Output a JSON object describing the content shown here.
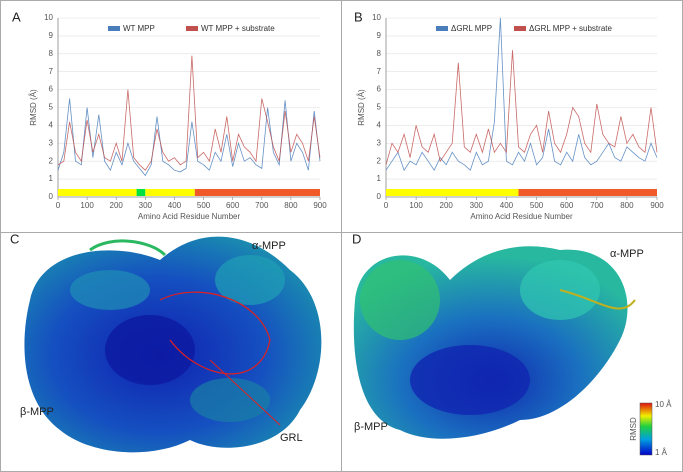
{
  "chart_data": [
    {
      "type": "line",
      "panel_label": "A",
      "ylabel": "RMSD (Å)",
      "xlabel": "Amino Acid Residue Number",
      "x": [
        0,
        20,
        40,
        60,
        80,
        100,
        120,
        140,
        160,
        180,
        200,
        220,
        240,
        260,
        280,
        300,
        320,
        340,
        360,
        380,
        400,
        420,
        440,
        460,
        480,
        500,
        520,
        540,
        560,
        580,
        600,
        620,
        640,
        660,
        680,
        700,
        720,
        740,
        760,
        780,
        800,
        820,
        840,
        860,
        880,
        900
      ],
      "series": [
        {
          "name": "WT MPP",
          "color": "#4a7ebb",
          "values": [
            1.5,
            2.5,
            5.5,
            2,
            1.8,
            5,
            2.2,
            4.6,
            2,
            1.5,
            2.5,
            1.8,
            3,
            2,
            1.6,
            1.2,
            1.8,
            4.5,
            2,
            1.8,
            1.5,
            1.4,
            1.6,
            4.2,
            2,
            1.8,
            1.5,
            2.5,
            2,
            3.5,
            1.7,
            3,
            2,
            2.2,
            1.8,
            1.6,
            5,
            2.5,
            1.8,
            5.4,
            2,
            3,
            2.5,
            1.5,
            4.8,
            2
          ]
        },
        {
          "name": "WT MPP + substrate",
          "color": "#c0504d",
          "values": [
            1.8,
            2,
            4.2,
            2.5,
            2,
            4.3,
            2.5,
            3.5,
            2.2,
            2,
            3,
            2,
            6,
            2.2,
            1.8,
            1.5,
            2,
            3.8,
            2.5,
            2,
            2.2,
            1.8,
            2,
            7.9,
            2.2,
            2.5,
            2,
            3.8,
            2.5,
            4.5,
            2,
            3.5,
            2.8,
            2.5,
            2,
            5.5,
            4.2,
            2.8,
            2,
            4.8,
            2.5,
            3.5,
            3,
            2,
            4.5,
            2.2
          ]
        }
      ],
      "regions": [
        {
          "start": 0,
          "end": 270,
          "color": "#ffff00"
        },
        {
          "start": 270,
          "end": 300,
          "color": "#00e040"
        },
        {
          "start": 300,
          "end": 470,
          "color": "#ffff00"
        },
        {
          "start": 470,
          "end": 900,
          "color": "#f05a28"
        }
      ],
      "xlim": [
        0,
        900
      ],
      "ylim": [
        0,
        10
      ],
      "xticks": [
        0,
        100,
        200,
        300,
        400,
        500,
        600,
        700,
        800,
        900
      ],
      "yticks": [
        0,
        1,
        2,
        3,
        4,
        5,
        6,
        7,
        8,
        9,
        10
      ]
    },
    {
      "type": "line",
      "panel_label": "B",
      "ylabel": "RMSD (Å)",
      "xlabel": "Amino Acid Residue Number",
      "x": [
        0,
        20,
        40,
        60,
        80,
        100,
        120,
        140,
        160,
        180,
        200,
        220,
        240,
        260,
        280,
        300,
        320,
        340,
        360,
        380,
        400,
        420,
        440,
        460,
        480,
        500,
        520,
        540,
        560,
        580,
        600,
        620,
        640,
        660,
        680,
        700,
        720,
        740,
        760,
        780,
        800,
        820,
        840,
        860,
        880,
        900
      ],
      "series": [
        {
          "name": "ΔGRL MPP",
          "color": "#4a7ebb",
          "values": [
            1.5,
            2,
            2.5,
            1.5,
            2,
            1.8,
            2.5,
            2,
            1.5,
            2.2,
            1.8,
            2.5,
            2,
            1.8,
            1.5,
            2.5,
            1.8,
            2,
            4.2,
            10,
            2,
            1.8,
            2.5,
            2,
            3,
            1.8,
            2.2,
            3.8,
            2,
            1.8,
            2.5,
            2,
            3.5,
            2.2,
            1.8,
            2,
            2.5,
            3,
            2.2,
            2,
            2.8,
            2.5,
            2.2,
            2,
            3,
            2.2
          ]
        },
        {
          "name": "ΔGRL MPP + substrate",
          "color": "#c0504d",
          "values": [
            1.8,
            3,
            2.5,
            3.5,
            2.2,
            4,
            2.8,
            2.5,
            3.5,
            2,
            2.5,
            3,
            7.5,
            2.8,
            2.5,
            3.5,
            2.5,
            3.8,
            2.5,
            3,
            2.5,
            8.2,
            2.8,
            2.5,
            3.5,
            4,
            2.5,
            4.8,
            3,
            2.5,
            3.5,
            5,
            4.5,
            3,
            2.5,
            5.2,
            3.5,
            3,
            2.8,
            4.5,
            3,
            3.5,
            2.8,
            2.5,
            5,
            2.5
          ]
        }
      ],
      "regions": [
        {
          "start": 0,
          "end": 440,
          "color": "#ffff00"
        },
        {
          "start": 440,
          "end": 900,
          "color": "#f05a28"
        }
      ],
      "xlim": [
        0,
        900
      ],
      "ylim": [
        0,
        10
      ],
      "xticks": [
        0,
        100,
        200,
        300,
        400,
        500,
        600,
        700,
        800,
        900
      ],
      "yticks": [
        0,
        1,
        2,
        3,
        4,
        5,
        6,
        7,
        8,
        9,
        10
      ]
    }
  ],
  "images": [
    {
      "letter": "C",
      "alpha_label": "α-MPP",
      "beta_label": "β-MPP",
      "extra_label": "GRL"
    },
    {
      "letter": "D",
      "alpha_label": "α-MPP",
      "beta_label": "β-MPP",
      "colorbar": {
        "title": "RMSD",
        "max_label": "10 Å",
        "min_label": "1 Å"
      }
    }
  ]
}
